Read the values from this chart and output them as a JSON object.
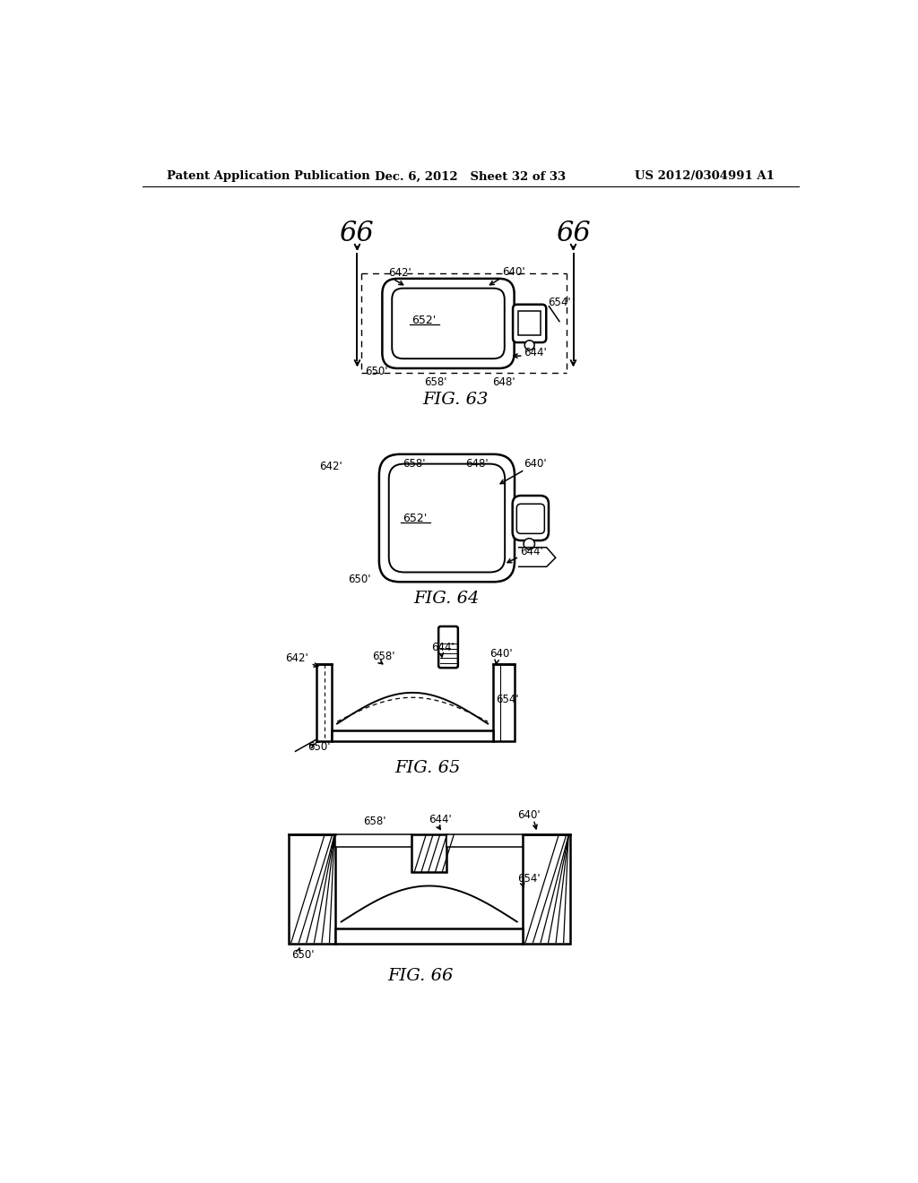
{
  "bg_color": "#ffffff",
  "header_left": "Patent Application Publication",
  "header_center": "Dec. 6, 2012   Sheet 32 of 33",
  "header_right": "US 2012/0304991 A1",
  "fig63_label": "FIG. 63",
  "fig64_label": "FIG. 64",
  "fig65_label": "FIG. 65",
  "fig66_label": "FIG. 66"
}
